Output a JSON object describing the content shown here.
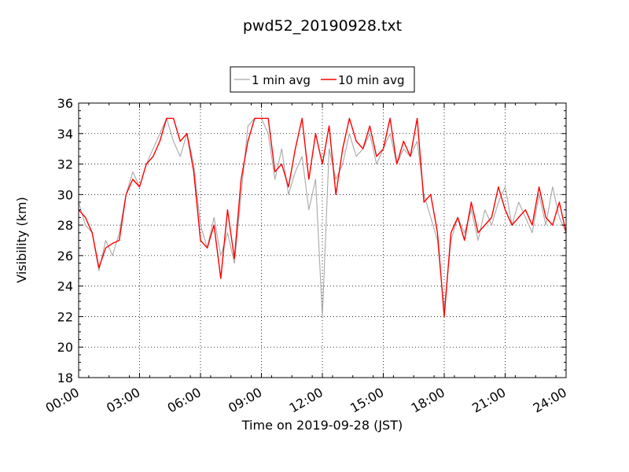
{
  "chart_data": {
    "type": "line",
    "title": "pwd52_20190928.txt",
    "xlabel": "Time on 2019-09-28 (JST)",
    "ylabel": "Visibility (km)",
    "xlim": [
      "00:00",
      "24:00"
    ],
    "ylim": [
      18,
      36
    ],
    "x_ticks": [
      "00:00",
      "03:00",
      "06:00",
      "09:00",
      "12:00",
      "15:00",
      "18:00",
      "21:00",
      "24:00"
    ],
    "y_ticks": [
      "18",
      "20",
      "22",
      "24",
      "26",
      "28",
      "30",
      "32",
      "34",
      "36"
    ],
    "grid": true,
    "legend_position": "top-center",
    "series": [
      {
        "name": "1 min avg",
        "color": "#a8a8a8",
        "x": [
          "00:00",
          "00:20",
          "00:40",
          "01:00",
          "01:20",
          "01:40",
          "02:00",
          "02:20",
          "02:40",
          "03:00",
          "03:20",
          "03:40",
          "04:00",
          "04:20",
          "04:40",
          "05:00",
          "05:20",
          "05:40",
          "06:00",
          "06:20",
          "06:40",
          "07:00",
          "07:20",
          "07:40",
          "08:00",
          "08:20",
          "08:40",
          "09:00",
          "09:20",
          "09:40",
          "10:00",
          "10:20",
          "10:40",
          "11:00",
          "11:20",
          "11:40",
          "12:00",
          "12:20",
          "12:40",
          "13:00",
          "13:20",
          "13:40",
          "14:00",
          "14:20",
          "14:40",
          "15:00",
          "15:20",
          "15:40",
          "16:00",
          "16:20",
          "16:40",
          "17:00",
          "17:20",
          "17:40",
          "18:00",
          "18:20",
          "18:40",
          "19:00",
          "19:20",
          "19:40",
          "20:00",
          "20:20",
          "20:40",
          "21:00",
          "21:20",
          "21:40",
          "22:00",
          "22:20",
          "22:40",
          "23:00",
          "23:20",
          "23:40",
          "24:00"
        ],
        "values": [
          29.5,
          28.0,
          27.5,
          25.0,
          27.0,
          26.0,
          27.5,
          30.0,
          31.5,
          30.5,
          32.0,
          33.0,
          34.0,
          35.0,
          33.5,
          32.5,
          34.0,
          32.0,
          28.0,
          26.5,
          28.5,
          26.0,
          27.5,
          25.5,
          30.0,
          34.5,
          35.0,
          35.0,
          34.0,
          31.0,
          33.0,
          30.0,
          31.5,
          32.5,
          29.0,
          31.0,
          22.0,
          33.0,
          31.0,
          32.0,
          34.0,
          32.5,
          33.0,
          34.0,
          32.0,
          33.0,
          34.0,
          32.0,
          33.0,
          32.5,
          33.5,
          30.0,
          28.5,
          27.0,
          22.5,
          27.0,
          28.5,
          27.5,
          29.0,
          27.0,
          29.0,
          28.0,
          29.5,
          30.5,
          28.0,
          29.5,
          28.5,
          27.5,
          30.0,
          28.0,
          30.5,
          28.5,
          27.5
        ]
      },
      {
        "name": "10 min avg",
        "color": "#ff0000",
        "x": [
          "00:00",
          "00:20",
          "00:40",
          "01:00",
          "01:20",
          "01:40",
          "02:00",
          "02:20",
          "02:40",
          "03:00",
          "03:20",
          "03:40",
          "04:00",
          "04:20",
          "04:40",
          "05:00",
          "05:20",
          "05:40",
          "06:00",
          "06:20",
          "06:40",
          "07:00",
          "07:20",
          "07:40",
          "08:00",
          "08:20",
          "08:40",
          "09:00",
          "09:20",
          "09:40",
          "10:00",
          "10:20",
          "10:40",
          "11:00",
          "11:20",
          "11:40",
          "12:00",
          "12:20",
          "12:40",
          "13:00",
          "13:20",
          "13:40",
          "14:00",
          "14:20",
          "14:40",
          "15:00",
          "15:20",
          "15:40",
          "16:00",
          "16:20",
          "16:40",
          "17:00",
          "17:20",
          "17:40",
          "18:00",
          "18:20",
          "18:40",
          "19:00",
          "19:20",
          "19:40",
          "20:00",
          "20:20",
          "20:40",
          "21:00",
          "21:20",
          "21:40",
          "22:00",
          "22:20",
          "22:40",
          "23:00",
          "23:20",
          "23:40",
          "24:00"
        ],
        "values": [
          29.0,
          28.5,
          27.5,
          25.2,
          26.5,
          26.8,
          27.0,
          30.0,
          31.0,
          30.5,
          32.0,
          32.5,
          33.5,
          35.0,
          35.0,
          33.5,
          34.0,
          31.5,
          27.0,
          26.5,
          28.0,
          24.5,
          29.0,
          25.8,
          31.0,
          33.5,
          35.0,
          35.0,
          35.0,
          31.5,
          32.0,
          30.5,
          33.0,
          35.0,
          31.0,
          34.0,
          32.0,
          34.5,
          30.0,
          33.0,
          35.0,
          33.5,
          33.0,
          34.5,
          32.5,
          33.0,
          35.0,
          32.0,
          33.5,
          32.5,
          35.0,
          29.5,
          30.0,
          27.5,
          22.0,
          27.5,
          28.5,
          27.0,
          29.5,
          27.5,
          28.0,
          28.5,
          30.5,
          29.0,
          28.0,
          28.5,
          29.0,
          28.0,
          30.5,
          28.5,
          28.0,
          29.5,
          27.5
        ]
      }
    ]
  }
}
